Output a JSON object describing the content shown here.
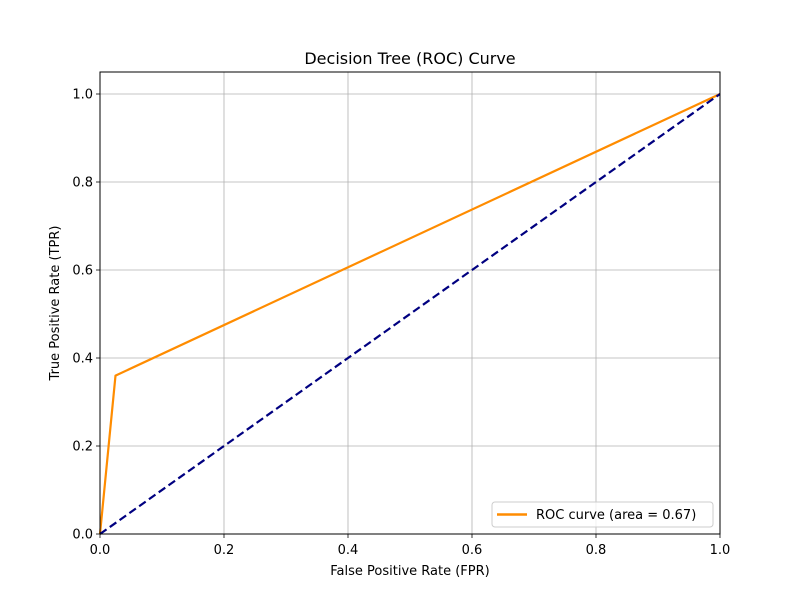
{
  "chart_data": {
    "type": "line",
    "title": "Decision Tree (ROC) Curve",
    "xlabel": "False Positive Rate (FPR)",
    "ylabel": "True Positive Rate (TPR)",
    "xlim": [
      0.0,
      1.0
    ],
    "ylim": [
      0.0,
      1.05
    ],
    "x_ticks": [
      0.0,
      0.2,
      0.4,
      0.6,
      0.8,
      1.0
    ],
    "y_ticks": [
      0.0,
      0.2,
      0.4,
      0.6,
      0.8,
      1.0
    ],
    "x_tick_labels": [
      "0.0",
      "0.2",
      "0.4",
      "0.6",
      "0.8",
      "1.0"
    ],
    "y_tick_labels": [
      "0.0",
      "0.2",
      "0.4",
      "0.6",
      "0.8",
      "1.0"
    ],
    "grid": true,
    "legend_position": "lower-right",
    "series": [
      {
        "name": "ROC curve (area = 0.67)",
        "color": "#ff8c00",
        "style": "solid",
        "x": [
          0.0,
          0.025,
          1.0
        ],
        "y": [
          0.0,
          0.36,
          1.0
        ]
      },
      {
        "color": "#000080",
        "style": "dashed",
        "x": [
          0.0,
          1.0
        ],
        "y": [
          0.0,
          1.0
        ]
      }
    ]
  }
}
